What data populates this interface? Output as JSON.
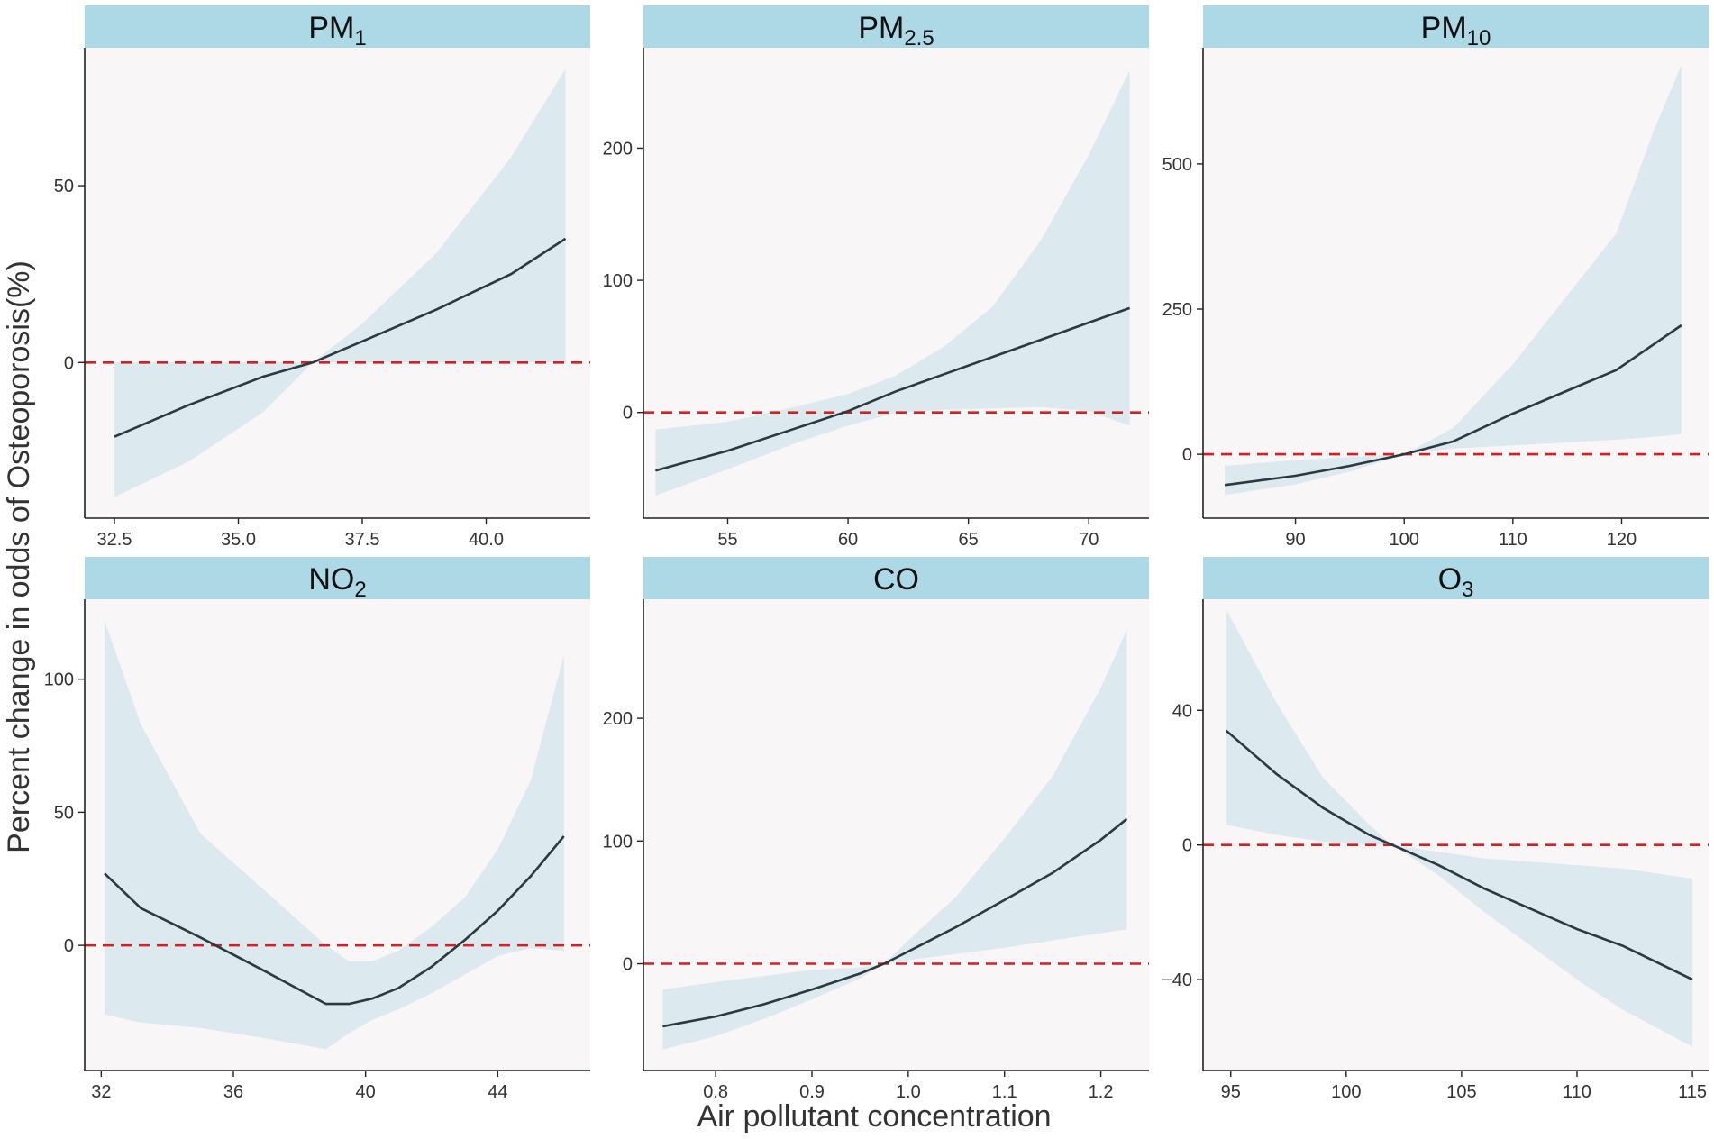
{
  "xlabel": "Air pollutant concentration",
  "ylabel": "Percent change in odds of Osteoporosis(%)",
  "colors": {
    "strip": "#add8e6",
    "panel": "#f8f6f7",
    "band": "#dce9ef",
    "fit": "#2b3a3f",
    "reference": "#d42020"
  },
  "chart_data": [
    {
      "type": "line",
      "title_main": "PM",
      "title_sub": "1",
      "xlim": [
        31.9,
        42.1
      ],
      "ylim": [
        -44,
        89
      ],
      "xticks": [
        32.5,
        35.0,
        37.5,
        40.0
      ],
      "xtick_labels": [
        "32.5",
        "35.0",
        "37.5",
        "40.0"
      ],
      "yticks": [
        0,
        50
      ],
      "ytick_labels": [
        "0",
        "50"
      ],
      "x": [
        32.5,
        34.0,
        35.5,
        36.5,
        37.5,
        39.0,
        40.5,
        41.6
      ],
      "y": [
        -21,
        -12,
        -4,
        0,
        6,
        15,
        25,
        35
      ],
      "lower": [
        -38,
        -28,
        -14,
        0,
        0,
        0,
        0,
        0
      ],
      "upper": [
        0,
        0,
        0,
        0,
        11,
        31,
        58,
        83
      ]
    },
    {
      "type": "line",
      "title_main": "PM",
      "title_sub": "2.5",
      "xlim": [
        51.5,
        72.5
      ],
      "ylim": [
        -80,
        276
      ],
      "xticks": [
        55,
        60,
        65,
        70
      ],
      "xtick_labels": [
        "55",
        "60",
        "65",
        "70"
      ],
      "yticks": [
        0,
        100,
        200
      ],
      "ytick_labels": [
        "0",
        "100",
        "200"
      ],
      "x": [
        52.0,
        55.0,
        58.0,
        60.0,
        62.0,
        64.0,
        66.0,
        68.0,
        70.0,
        71.7
      ],
      "y": [
        -44,
        -29,
        -11,
        1,
        16,
        29,
        42,
        55,
        68,
        79
      ],
      "lower": [
        -63,
        -43,
        -22,
        -10,
        0,
        2,
        3,
        4,
        1,
        -10
      ],
      "upper": [
        -13,
        -7,
        5,
        14,
        28,
        50,
        80,
        130,
        195,
        259
      ]
    },
    {
      "type": "line",
      "title_main": "PM",
      "title_sub": "10",
      "xlim": [
        81.5,
        128
      ],
      "ylim": [
        -110,
        700
      ],
      "xticks": [
        90,
        100,
        110,
        120
      ],
      "xtick_labels": [
        "90",
        "100",
        "110",
        "120"
      ],
      "yticks": [
        0,
        250,
        500
      ],
      "ytick_labels": [
        "0",
        "250",
        "500"
      ],
      "x": [
        83.5,
        90,
        95,
        100,
        104.5,
        110,
        119.5,
        123.0,
        125.5
      ],
      "y": [
        -53,
        -37,
        -20,
        0,
        22,
        70,
        145,
        190,
        222
      ],
      "lower": [
        -70,
        -52,
        -30,
        0,
        10,
        15,
        25,
        30,
        35
      ],
      "upper": [
        -20,
        -10,
        -5,
        0,
        45,
        155,
        380,
        560,
        670
      ]
    },
    {
      "type": "line",
      "title_main": "NO",
      "title_sub": "2",
      "xlim": [
        31.5,
        46.8
      ],
      "ylim": [
        -47,
        130
      ],
      "xticks": [
        32,
        36,
        40,
        44
      ],
      "xtick_labels": [
        "32",
        "36",
        "40",
        "44"
      ],
      "yticks": [
        0,
        50,
        100
      ],
      "ytick_labels": [
        "0",
        "50",
        "100"
      ],
      "x": [
        32.1,
        33.2,
        35.0,
        37.0,
        38.8,
        39.5,
        40.2,
        41.0,
        42.0,
        43.0,
        44.0,
        45.0,
        46.0
      ],
      "y": [
        27,
        14,
        3,
        -10,
        -22,
        -22,
        -20,
        -16,
        -8,
        2,
        13,
        26,
        41
      ],
      "lower": [
        -26,
        -29,
        -31,
        -35,
        -39,
        -33,
        -28,
        -24,
        -18,
        -11,
        -4,
        -1,
        -2
      ],
      "upper": [
        122,
        83,
        42,
        20,
        0,
        -6,
        -6,
        -2,
        7,
        18,
        36,
        62,
        109
      ]
    },
    {
      "type": "line",
      "title_main": "CO",
      "title_sub": "",
      "xlim": [
        0.725,
        1.25
      ],
      "ylim": [
        -87,
        297
      ],
      "xticks": [
        0.8,
        0.9,
        1.0,
        1.1,
        1.2
      ],
      "xtick_labels": [
        "0.8",
        "0.9",
        "1.0",
        "1.1",
        "1.2"
      ],
      "yticks": [
        0,
        100,
        200
      ],
      "ytick_labels": [
        "0",
        "100",
        "200"
      ],
      "x": [
        0.745,
        0.8,
        0.85,
        0.9,
        0.95,
        0.975,
        1.0,
        1.05,
        1.1,
        1.15,
        1.2,
        1.227
      ],
      "y": [
        -51,
        -43,
        -33,
        -21,
        -8,
        0,
        10,
        30,
        52,
        74,
        101,
        118
      ],
      "lower": [
        -70,
        -59,
        -45,
        -29,
        -12,
        0,
        3,
        8,
        13,
        19,
        25,
        28
      ],
      "upper": [
        -21,
        -15,
        -10,
        -5,
        -3,
        0,
        19,
        55,
        102,
        153,
        225,
        272
      ]
    },
    {
      "type": "line",
      "title_main": "O",
      "title_sub": "3",
      "xlim": [
        93.8,
        115.7
      ],
      "ylim": [
        -67,
        73
      ],
      "xticks": [
        95,
        100,
        105,
        110,
        115
      ],
      "xtick_labels": [
        "95",
        "100",
        "105",
        "110",
        "115"
      ],
      "yticks": [
        -40,
        0,
        40
      ],
      "ytick_labels": [
        "−40",
        "0",
        "40"
      ],
      "x": [
        94.8,
        97,
        99,
        101,
        102,
        104,
        106,
        108,
        110,
        112,
        115
      ],
      "y": [
        34,
        21,
        11,
        3,
        0,
        -6,
        -13,
        -19,
        -25,
        -30,
        -40
      ],
      "lower": [
        6,
        3,
        1,
        0,
        0,
        -9,
        -20,
        -30,
        -40,
        -49,
        -60
      ],
      "upper": [
        70,
        42,
        20,
        6,
        0,
        -2,
        -4,
        -5,
        -6,
        -7,
        -10
      ]
    }
  ]
}
